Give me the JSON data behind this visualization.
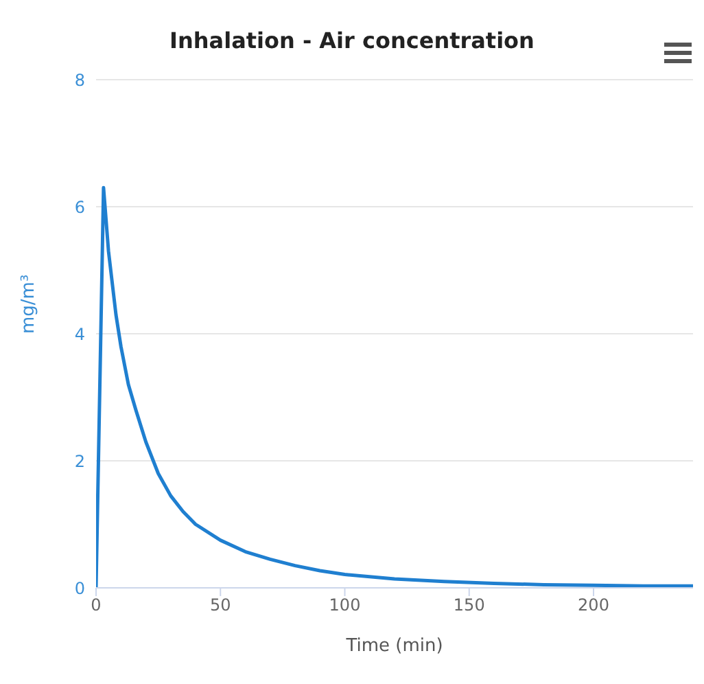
{
  "chart_data": {
    "type": "line",
    "title": "Inhalation - Air concentration",
    "xlabel": "Time (min)",
    "ylabel": "mg/m³",
    "x": [
      0,
      3,
      5,
      8,
      10,
      13,
      16,
      20,
      25,
      30,
      35,
      40,
      50,
      60,
      70,
      80,
      90,
      100,
      120,
      140,
      160,
      180,
      200,
      220,
      240
    ],
    "series": [
      {
        "color": "#1f7fd0",
        "values": [
          0,
          6.3,
          5.3,
          4.3,
          3.8,
          3.2,
          2.8,
          2.3,
          1.8,
          1.45,
          1.2,
          1.0,
          0.75,
          0.57,
          0.45,
          0.35,
          0.27,
          0.21,
          0.14,
          0.1,
          0.07,
          0.05,
          0.04,
          0.03,
          0.03
        ]
      }
    ],
    "xlim": [
      0,
      240
    ],
    "xticks": [
      0,
      50,
      100,
      150,
      200
    ],
    "ylim": [
      0,
      8
    ],
    "yticks": [
      0,
      2,
      4,
      6,
      8
    ],
    "grid": "y",
    "legend": false,
    "marker": "none",
    "line_style": "solid"
  }
}
